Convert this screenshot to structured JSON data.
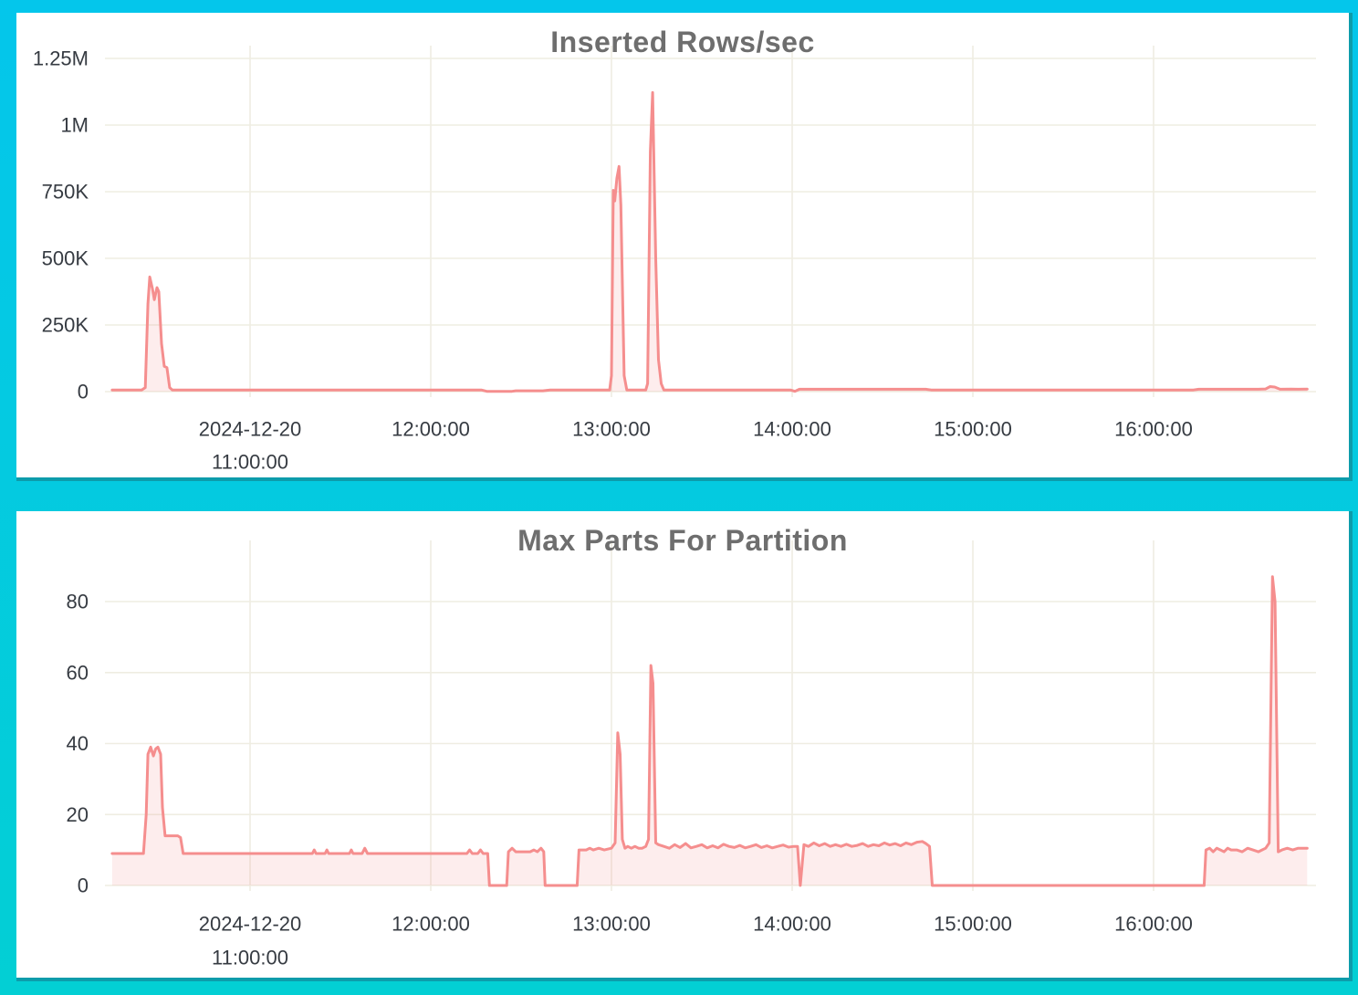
{
  "page": {
    "colors": {
      "background_top": "#04C6EB",
      "background_bottom": "#03CFD4",
      "panel_shadow": "#0D9CAB",
      "panel_background": "#FFFFFF",
      "title_text": "#6E6E6E",
      "axis_text": "#363B42"
    }
  },
  "chart_data": [
    {
      "type": "area",
      "title": "Inserted Rows/sec",
      "line_color": "#F58E8E",
      "fill_color": "rgba(245,142,142,0.16)",
      "grid_color": "#EFEDE2",
      "tick_color": "#363B42",
      "grid": true,
      "legend": "none",
      "xlabel": "",
      "ylabel": "",
      "ylim": [
        0,
        1280000
      ],
      "x_range_hours": [
        10.23,
        16.86
      ],
      "x_ticks": [
        {
          "v": 11,
          "line1": "2024-12-20",
          "line2": "11:00:00"
        },
        {
          "v": 12,
          "line1": "12:00:00"
        },
        {
          "v": 13,
          "line1": "13:00:00"
        },
        {
          "v": 14,
          "line1": "14:00:00"
        },
        {
          "v": 15,
          "line1": "15:00:00"
        },
        {
          "v": 16,
          "line1": "16:00:00"
        }
      ],
      "y_ticks": [
        {
          "v": 0,
          "label": "0"
        },
        {
          "v": 250000,
          "label": "250K"
        },
        {
          "v": 500000,
          "label": "500K"
        },
        {
          "v": 750000,
          "label": "750K"
        },
        {
          "v": 1000000,
          "label": "1M"
        },
        {
          "v": 1250000,
          "label": "1.25M"
        }
      ],
      "points": [
        [
          10.237,
          6000
        ],
        [
          10.4,
          6000
        ],
        [
          10.42,
          15000
        ],
        [
          10.435,
          330000
        ],
        [
          10.445,
          430000
        ],
        [
          10.46,
          385000
        ],
        [
          10.47,
          345000
        ],
        [
          10.485,
          390000
        ],
        [
          10.495,
          375000
        ],
        [
          10.51,
          180000
        ],
        [
          10.525,
          95000
        ],
        [
          10.54,
          90000
        ],
        [
          10.555,
          15000
        ],
        [
          10.57,
          6000
        ],
        [
          12.28,
          6000
        ],
        [
          12.31,
          1000
        ],
        [
          12.45,
          1000
        ],
        [
          12.47,
          3000
        ],
        [
          12.62,
          3000
        ],
        [
          12.66,
          6000
        ],
        [
          12.99,
          6000
        ],
        [
          13.0,
          60000
        ],
        [
          13.01,
          755000
        ],
        [
          13.018,
          715000
        ],
        [
          13.03,
          800000
        ],
        [
          13.042,
          845000
        ],
        [
          13.052,
          700000
        ],
        [
          13.07,
          60000
        ],
        [
          13.085,
          6000
        ],
        [
          13.19,
          6000
        ],
        [
          13.2,
          30000
        ],
        [
          13.215,
          900000
        ],
        [
          13.228,
          1122000
        ],
        [
          13.245,
          500000
        ],
        [
          13.26,
          120000
        ],
        [
          13.275,
          30000
        ],
        [
          13.29,
          6000
        ],
        [
          13.99,
          6000
        ],
        [
          14.015,
          1000
        ],
        [
          14.04,
          9000
        ],
        [
          14.74,
          9000
        ],
        [
          14.77,
          6000
        ],
        [
          16.22,
          6000
        ],
        [
          16.25,
          9000
        ],
        [
          16.58,
          9000
        ],
        [
          16.62,
          10000
        ],
        [
          16.645,
          19000
        ],
        [
          16.67,
          17000
        ],
        [
          16.7,
          9000
        ],
        [
          16.76,
          9500
        ],
        [
          16.8,
          9000
        ],
        [
          16.85,
          9500
        ]
      ]
    },
    {
      "type": "area",
      "title": "Max Parts For Partition",
      "line_color": "#F58E8E",
      "fill_color": "rgba(245,142,142,0.16)",
      "grid_color": "#EFEDE2",
      "tick_color": "#363B42",
      "grid": true,
      "legend": "none",
      "xlabel": "",
      "ylabel": "",
      "ylim": [
        0,
        95
      ],
      "x_range_hours": [
        10.23,
        16.86
      ],
      "x_ticks": [
        {
          "v": 11,
          "line1": "2024-12-20",
          "line2": "11:00:00"
        },
        {
          "v": 12,
          "line1": "12:00:00"
        },
        {
          "v": 13,
          "line1": "13:00:00"
        },
        {
          "v": 14,
          "line1": "14:00:00"
        },
        {
          "v": 15,
          "line1": "15:00:00"
        },
        {
          "v": 16,
          "line1": "16:00:00"
        }
      ],
      "y_ticks": [
        {
          "v": 0,
          "label": "0"
        },
        {
          "v": 20,
          "label": "20"
        },
        {
          "v": 40,
          "label": "40"
        },
        {
          "v": 60,
          "label": "60"
        },
        {
          "v": 80,
          "label": "80"
        }
      ],
      "points": [
        [
          10.237,
          9
        ],
        [
          10.41,
          9
        ],
        [
          10.425,
          20
        ],
        [
          10.435,
          37
        ],
        [
          10.45,
          39
        ],
        [
          10.465,
          36.5
        ],
        [
          10.478,
          38.5
        ],
        [
          10.49,
          39
        ],
        [
          10.505,
          37
        ],
        [
          10.515,
          22
        ],
        [
          10.53,
          14
        ],
        [
          10.6,
          14
        ],
        [
          10.615,
          13.5
        ],
        [
          10.63,
          9
        ],
        [
          10.9,
          9
        ],
        [
          11.2,
          9
        ],
        [
          11.345,
          9
        ],
        [
          11.355,
          10
        ],
        [
          11.365,
          9
        ],
        [
          11.415,
          9
        ],
        [
          11.425,
          10
        ],
        [
          11.435,
          9
        ],
        [
          11.55,
          9
        ],
        [
          11.56,
          10
        ],
        [
          11.57,
          9
        ],
        [
          11.62,
          9
        ],
        [
          11.635,
          10.5
        ],
        [
          11.65,
          9
        ],
        [
          12.2,
          9
        ],
        [
          12.215,
          10
        ],
        [
          12.23,
          9
        ],
        [
          12.26,
          9
        ],
        [
          12.275,
          10
        ],
        [
          12.29,
          9
        ],
        [
          12.315,
          9
        ],
        [
          12.325,
          0
        ],
        [
          12.42,
          0
        ],
        [
          12.43,
          9.5
        ],
        [
          12.45,
          10.5
        ],
        [
          12.47,
          9.5
        ],
        [
          12.55,
          9.5
        ],
        [
          12.57,
          10
        ],
        [
          12.59,
          9.5
        ],
        [
          12.61,
          10.5
        ],
        [
          12.625,
          9.5
        ],
        [
          12.633,
          0
        ],
        [
          12.81,
          0
        ],
        [
          12.82,
          10
        ],
        [
          12.86,
          10
        ],
        [
          12.88,
          10.5
        ],
        [
          12.9,
          10
        ],
        [
          12.93,
          10.5
        ],
        [
          12.96,
          10
        ],
        [
          13.0,
          10.5
        ],
        [
          13.02,
          12
        ],
        [
          13.035,
          43
        ],
        [
          13.048,
          37
        ],
        [
          13.06,
          13
        ],
        [
          13.075,
          10.5
        ],
        [
          13.09,
          11
        ],
        [
          13.11,
          10.5
        ],
        [
          13.13,
          11
        ],
        [
          13.15,
          10.5
        ],
        [
          13.17,
          10.5
        ],
        [
          13.19,
          11
        ],
        [
          13.205,
          13
        ],
        [
          13.218,
          62
        ],
        [
          13.23,
          57
        ],
        [
          13.245,
          12
        ],
        [
          13.26,
          11.5
        ],
        [
          13.29,
          11
        ],
        [
          13.32,
          10.5
        ],
        [
          13.35,
          11.5
        ],
        [
          13.38,
          10.7
        ],
        [
          13.41,
          11.8
        ],
        [
          13.44,
          10.6
        ],
        [
          13.47,
          11
        ],
        [
          13.5,
          11.5
        ],
        [
          13.53,
          10.6
        ],
        [
          13.56,
          11.2
        ],
        [
          13.59,
          10.6
        ],
        [
          13.62,
          11.6
        ],
        [
          13.65,
          11
        ],
        [
          13.68,
          10.7
        ],
        [
          13.71,
          11.3
        ],
        [
          13.74,
          10.6
        ],
        [
          13.77,
          11
        ],
        [
          13.8,
          11.5
        ],
        [
          13.83,
          10.7
        ],
        [
          13.86,
          11.2
        ],
        [
          13.89,
          10.6
        ],
        [
          13.92,
          11
        ],
        [
          13.95,
          11.4
        ],
        [
          13.98,
          10.8
        ],
        [
          14.01,
          11
        ],
        [
          14.03,
          11
        ],
        [
          14.045,
          0
        ],
        [
          14.065,
          11.5
        ],
        [
          14.09,
          11
        ],
        [
          14.12,
          12
        ],
        [
          14.15,
          11.2
        ],
        [
          14.18,
          11.8
        ],
        [
          14.21,
          11
        ],
        [
          14.24,
          11.5
        ],
        [
          14.27,
          11
        ],
        [
          14.3,
          11.6
        ],
        [
          14.33,
          11
        ],
        [
          14.36,
          11.3
        ],
        [
          14.39,
          11.8
        ],
        [
          14.42,
          11
        ],
        [
          14.45,
          11.5
        ],
        [
          14.48,
          11.2
        ],
        [
          14.51,
          12
        ],
        [
          14.54,
          11.4
        ],
        [
          14.57,
          11.8
        ],
        [
          14.6,
          11.2
        ],
        [
          14.63,
          12
        ],
        [
          14.66,
          11.5
        ],
        [
          14.69,
          12.2
        ],
        [
          14.72,
          12.4
        ],
        [
          14.74,
          11.8
        ],
        [
          14.76,
          11
        ],
        [
          14.775,
          0
        ],
        [
          15.5,
          0
        ],
        [
          16.0,
          0
        ],
        [
          16.28,
          0
        ],
        [
          16.29,
          10
        ],
        [
          16.31,
          10.5
        ],
        [
          16.33,
          9.5
        ],
        [
          16.35,
          10.5
        ],
        [
          16.37,
          10
        ],
        [
          16.39,
          9.5
        ],
        [
          16.41,
          10.5
        ],
        [
          16.43,
          10
        ],
        [
          16.46,
          10
        ],
        [
          16.49,
          9.5
        ],
        [
          16.52,
          10.5
        ],
        [
          16.55,
          10
        ],
        [
          16.58,
          9.5
        ],
        [
          16.6,
          10
        ],
        [
          16.62,
          10.5
        ],
        [
          16.64,
          12
        ],
        [
          16.658,
          87
        ],
        [
          16.672,
          80
        ],
        [
          16.69,
          9.5
        ],
        [
          16.71,
          10
        ],
        [
          16.74,
          10.5
        ],
        [
          16.77,
          10
        ],
        [
          16.8,
          10.5
        ],
        [
          16.83,
          10.5
        ],
        [
          16.85,
          10.5
        ]
      ]
    }
  ]
}
